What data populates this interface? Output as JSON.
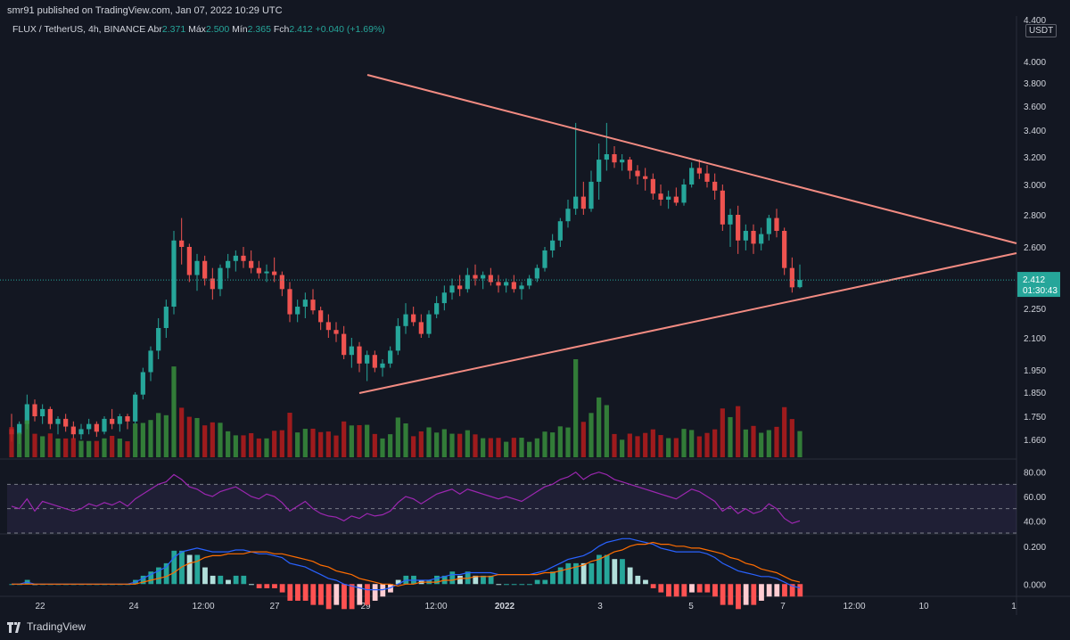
{
  "header": {
    "published": "smr91 published on TradingView.com, Jan 07, 2022 10:29 UTC",
    "symbol": "FLUX / TetherUS, 4h, BINANCE",
    "open_label": "Abr",
    "open": "2.371",
    "high_label": "Máx",
    "high": "2.500",
    "low_label": "Mín",
    "low": "2.365",
    "close_label": "Fch",
    "close": "2.412",
    "change": "+0.040 (+1.69%)",
    "currency": "USDT"
  },
  "footer": {
    "brand": "TradingView"
  },
  "colors": {
    "up": "#26a69a",
    "down": "#ef5350",
    "vol_up": "#388e3c",
    "vol_down": "#b71c1c",
    "trendline": "#f28b82",
    "rsi": "#9c27b0",
    "macd": "#2962ff",
    "signal": "#ff6d00"
  },
  "chart_data": [
    {
      "type": "candlestick",
      "price_axis_ticks": [
        "4.400",
        "4.000",
        "3.800",
        "3.600",
        "3.400",
        "3.200",
        "3.000",
        "2.800",
        "2.600",
        "2.250",
        "2.100",
        "1.950",
        "1.850",
        "1.750",
        "1.660"
      ],
      "price_axis_tick_values": [
        4.4,
        4.0,
        3.8,
        3.6,
        3.4,
        3.2,
        3.0,
        2.8,
        2.6,
        2.25,
        2.1,
        1.95,
        1.85,
        1.75,
        1.66
      ],
      "time_axis_ticks": [
        "22",
        "24",
        "12:00",
        "27",
        "29",
        "12:00",
        "2022",
        "3",
        "5",
        "7",
        "12:00",
        "10",
        "1"
      ],
      "last_price": "2.412",
      "countdown": "01:30:43",
      "candles": [
        [
          1.7,
          1.76,
          1.65,
          1.68
        ],
        [
          1.68,
          1.73,
          1.64,
          1.72
        ],
        [
          1.72,
          1.84,
          1.7,
          1.8
        ],
        [
          1.8,
          1.82,
          1.73,
          1.75
        ],
        [
          1.75,
          1.8,
          1.72,
          1.78
        ],
        [
          1.78,
          1.79,
          1.7,
          1.72
        ],
        [
          1.72,
          1.75,
          1.68,
          1.74
        ],
        [
          1.74,
          1.76,
          1.69,
          1.71
        ],
        [
          1.71,
          1.73,
          1.66,
          1.68
        ],
        [
          1.68,
          1.72,
          1.66,
          1.7
        ],
        [
          1.7,
          1.74,
          1.68,
          1.72
        ],
        [
          1.72,
          1.73,
          1.67,
          1.69
        ],
        [
          1.69,
          1.75,
          1.68,
          1.74
        ],
        [
          1.74,
          1.78,
          1.7,
          1.72
        ],
        [
          1.72,
          1.76,
          1.69,
          1.75
        ],
        [
          1.75,
          1.76,
          1.7,
          1.73
        ],
        [
          1.73,
          1.85,
          1.72,
          1.84
        ],
        [
          1.84,
          1.96,
          1.82,
          1.94
        ],
        [
          1.94,
          2.06,
          1.9,
          2.04
        ],
        [
          2.04,
          2.2,
          2.0,
          2.15
        ],
        [
          2.15,
          2.3,
          2.1,
          2.26
        ],
        [
          2.26,
          2.7,
          2.22,
          2.64
        ],
        [
          2.64,
          2.78,
          2.5,
          2.6
        ],
        [
          2.6,
          2.62,
          2.4,
          2.44
        ],
        [
          2.44,
          2.56,
          2.35,
          2.52
        ],
        [
          2.52,
          2.55,
          2.38,
          2.42
        ],
        [
          2.42,
          2.48,
          2.3,
          2.36
        ],
        [
          2.36,
          2.5,
          2.32,
          2.48
        ],
        [
          2.48,
          2.56,
          2.42,
          2.52
        ],
        [
          2.52,
          2.58,
          2.46,
          2.55
        ],
        [
          2.55,
          2.6,
          2.48,
          2.52
        ],
        [
          2.52,
          2.58,
          2.45,
          2.48
        ],
        [
          2.48,
          2.52,
          2.42,
          2.45
        ],
        [
          2.45,
          2.5,
          2.4,
          2.46
        ],
        [
          2.46,
          2.54,
          2.4,
          2.44
        ],
        [
          2.44,
          2.46,
          2.32,
          2.36
        ],
        [
          2.36,
          2.4,
          2.18,
          2.22
        ],
        [
          2.22,
          2.3,
          2.18,
          2.26
        ],
        [
          2.26,
          2.34,
          2.2,
          2.3
        ],
        [
          2.3,
          2.36,
          2.22,
          2.24
        ],
        [
          2.24,
          2.26,
          2.14,
          2.18
        ],
        [
          2.18,
          2.22,
          2.1,
          2.14
        ],
        [
          2.14,
          2.18,
          2.08,
          2.12
        ],
        [
          2.12,
          2.16,
          2.0,
          2.02
        ],
        [
          2.02,
          2.1,
          1.96,
          2.06
        ],
        [
          2.06,
          2.08,
          1.94,
          1.98
        ],
        [
          1.98,
          2.04,
          1.9,
          2.02
        ],
        [
          2.02,
          2.04,
          1.94,
          1.96
        ],
        [
          1.96,
          2.0,
          1.92,
          1.98
        ],
        [
          1.98,
          2.06,
          1.96,
          2.04
        ],
        [
          2.04,
          2.2,
          2.02,
          2.16
        ],
        [
          2.16,
          2.28,
          2.12,
          2.22
        ],
        [
          2.22,
          2.26,
          2.16,
          2.18
        ],
        [
          2.18,
          2.22,
          2.1,
          2.12
        ],
        [
          2.12,
          2.24,
          2.1,
          2.22
        ],
        [
          2.22,
          2.32,
          2.2,
          2.28
        ],
        [
          2.28,
          2.38,
          2.24,
          2.34
        ],
        [
          2.34,
          2.42,
          2.3,
          2.38
        ],
        [
          2.38,
          2.44,
          2.32,
          2.36
        ],
        [
          2.36,
          2.48,
          2.34,
          2.44
        ],
        [
          2.44,
          2.5,
          2.38,
          2.42
        ],
        [
          2.42,
          2.46,
          2.36,
          2.44
        ],
        [
          2.44,
          2.48,
          2.38,
          2.4
        ],
        [
          2.4,
          2.44,
          2.34,
          2.38
        ],
        [
          2.38,
          2.42,
          2.34,
          2.4
        ],
        [
          2.4,
          2.44,
          2.34,
          2.36
        ],
        [
          2.36,
          2.4,
          2.3,
          2.38
        ],
        [
          2.38,
          2.44,
          2.36,
          2.42
        ],
        [
          2.42,
          2.5,
          2.4,
          2.48
        ],
        [
          2.48,
          2.6,
          2.46,
          2.58
        ],
        [
          2.58,
          2.68,
          2.54,
          2.64
        ],
        [
          2.64,
          2.78,
          2.6,
          2.76
        ],
        [
          2.76,
          2.9,
          2.72,
          2.84
        ],
        [
          2.84,
          3.46,
          2.8,
          2.92
        ],
        [
          2.92,
          3.02,
          2.8,
          2.84
        ],
        [
          2.84,
          3.1,
          2.82,
          3.02
        ],
        [
          3.02,
          3.3,
          2.9,
          3.18
        ],
        [
          3.18,
          3.46,
          3.1,
          3.22
        ],
        [
          3.22,
          3.28,
          3.12,
          3.16
        ],
        [
          3.16,
          3.22,
          3.1,
          3.18
        ],
        [
          3.18,
          3.2,
          3.04,
          3.1
        ],
        [
          3.1,
          3.14,
          3.0,
          3.06
        ],
        [
          3.06,
          3.12,
          2.96,
          3.04
        ],
        [
          3.04,
          3.08,
          2.9,
          2.94
        ],
        [
          2.94,
          3.0,
          2.86,
          2.9
        ],
        [
          2.9,
          2.96,
          2.84,
          2.92
        ],
        [
          2.92,
          2.98,
          2.86,
          2.88
        ],
        [
          2.88,
          3.04,
          2.86,
          3.0
        ],
        [
          3.0,
          3.16,
          2.98,
          3.12
        ],
        [
          3.12,
          3.18,
          3.04,
          3.08
        ],
        [
          3.08,
          3.14,
          2.98,
          3.02
        ],
        [
          3.02,
          3.08,
          2.9,
          2.96
        ],
        [
          2.96,
          3.0,
          2.7,
          2.74
        ],
        [
          2.74,
          2.84,
          2.6,
          2.8
        ],
        [
          2.8,
          2.86,
          2.56,
          2.64
        ],
        [
          2.64,
          2.74,
          2.58,
          2.7
        ],
        [
          2.7,
          2.74,
          2.56,
          2.62
        ],
        [
          2.62,
          2.72,
          2.58,
          2.68
        ],
        [
          2.68,
          2.8,
          2.64,
          2.78
        ],
        [
          2.78,
          2.84,
          2.66,
          2.7
        ],
        [
          2.7,
          2.72,
          2.44,
          2.48
        ],
        [
          2.48,
          2.54,
          2.34,
          2.37
        ],
        [
          2.371,
          2.5,
          2.365,
          2.412
        ]
      ],
      "volume_vs_up": "green = close>=open"
    },
    {
      "type": "line",
      "title": "RSI",
      "axis_ticks": [
        "80.00",
        "60.00",
        "40.00"
      ],
      "ylim": [
        30,
        90
      ],
      "bands": [
        70,
        50,
        30
      ],
      "values": [
        52,
        50,
        58,
        48,
        56,
        54,
        52,
        50,
        48,
        50,
        54,
        52,
        55,
        53,
        56,
        52,
        58,
        62,
        66,
        70,
        72,
        78,
        74,
        68,
        66,
        62,
        60,
        64,
        66,
        68,
        64,
        60,
        58,
        62,
        60,
        55,
        48,
        52,
        56,
        50,
        46,
        44,
        43,
        40,
        44,
        42,
        46,
        44,
        45,
        48,
        55,
        60,
        58,
        54,
        58,
        62,
        64,
        66,
        62,
        66,
        64,
        62,
        60,
        58,
        60,
        58,
        56,
        60,
        64,
        68,
        70,
        74,
        76,
        80,
        74,
        78,
        80,
        78,
        74,
        72,
        70,
        68,
        66,
        64,
        62,
        60,
        58,
        62,
        66,
        64,
        60,
        56,
        48,
        52,
        46,
        50,
        46,
        48,
        54,
        50,
        42,
        38,
        40
      ]
    },
    {
      "type": "line",
      "title": "MACD",
      "axis_ticks": [
        "0.200",
        "0.000"
      ],
      "ylim": [
        -0.06,
        0.26
      ],
      "series": [
        {
          "values": [
            0.0,
            0.0,
            0.01,
            0.0,
            0.0,
            0.0,
            0.0,
            0.0,
            0.0,
            0.0,
            0.0,
            0.0,
            0.0,
            0.0,
            0.0,
            0.0,
            0.01,
            0.03,
            0.05,
            0.07,
            0.09,
            0.14,
            0.17,
            0.18,
            0.19,
            0.18,
            0.17,
            0.17,
            0.17,
            0.18,
            0.18,
            0.17,
            0.16,
            0.16,
            0.15,
            0.14,
            0.11,
            0.1,
            0.09,
            0.07,
            0.05,
            0.03,
            0.02,
            0.0,
            -0.01,
            -0.02,
            -0.03,
            -0.03,
            -0.03,
            -0.02,
            0.0,
            0.02,
            0.02,
            0.02,
            0.02,
            0.03,
            0.04,
            0.05,
            0.05,
            0.06,
            0.06,
            0.06,
            0.06,
            0.05,
            0.05,
            0.05,
            0.05,
            0.05,
            0.06,
            0.07,
            0.09,
            0.11,
            0.13,
            0.14,
            0.15,
            0.17,
            0.2,
            0.22,
            0.23,
            0.24,
            0.24,
            0.23,
            0.22,
            0.21,
            0.19,
            0.18,
            0.17,
            0.17,
            0.17,
            0.17,
            0.16,
            0.14,
            0.11,
            0.09,
            0.07,
            0.06,
            0.05,
            0.04,
            0.04,
            0.03,
            0.01,
            -0.01,
            -0.02
          ]
        },
        {
          "values": [
            0.0,
            0.0,
            0.0,
            0.0,
            0.0,
            0.0,
            0.0,
            0.0,
            0.0,
            0.0,
            0.0,
            0.0,
            0.0,
            0.0,
            0.0,
            0.0,
            0.0,
            0.01,
            0.02,
            0.03,
            0.04,
            0.06,
            0.09,
            0.11,
            0.12,
            0.14,
            0.15,
            0.15,
            0.16,
            0.16,
            0.16,
            0.17,
            0.17,
            0.17,
            0.16,
            0.16,
            0.15,
            0.14,
            0.13,
            0.12,
            0.1,
            0.09,
            0.07,
            0.06,
            0.05,
            0.03,
            0.02,
            0.01,
            0.0,
            0.0,
            -0.01,
            0.0,
            0.0,
            0.01,
            0.01,
            0.01,
            0.02,
            0.02,
            0.03,
            0.03,
            0.04,
            0.04,
            0.04,
            0.05,
            0.05,
            0.05,
            0.05,
            0.05,
            0.05,
            0.06,
            0.06,
            0.07,
            0.08,
            0.09,
            0.1,
            0.12,
            0.13,
            0.15,
            0.17,
            0.18,
            0.2,
            0.21,
            0.21,
            0.22,
            0.21,
            0.21,
            0.2,
            0.2,
            0.19,
            0.19,
            0.18,
            0.17,
            0.16,
            0.14,
            0.13,
            0.11,
            0.1,
            0.08,
            0.07,
            0.06,
            0.04,
            0.02,
            0.01
          ]
        }
      ]
    }
  ]
}
